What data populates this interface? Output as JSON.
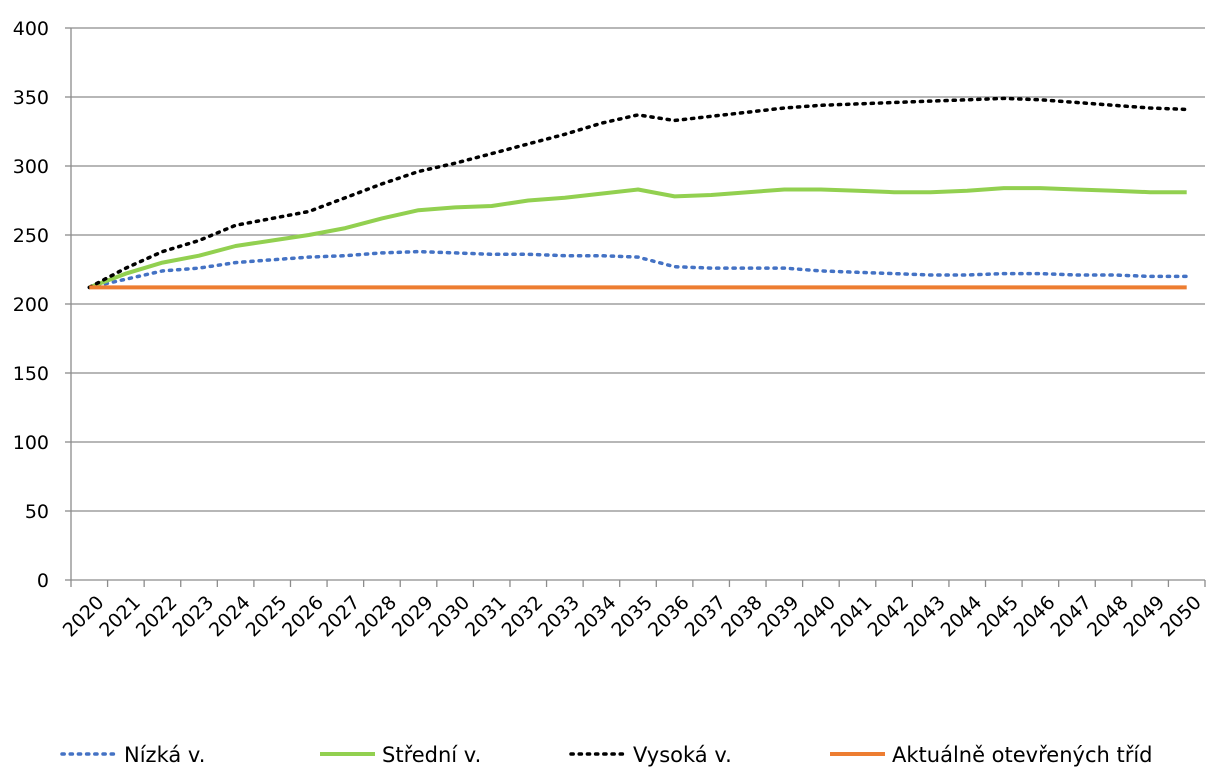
{
  "chart_data": {
    "type": "line",
    "title": "",
    "xlabel": "",
    "ylabel": "",
    "ylim": [
      0,
      400
    ],
    "yticks": [
      0,
      50,
      100,
      150,
      200,
      250,
      300,
      350,
      400
    ],
    "grid": true,
    "legend_position": "bottom",
    "x": [
      2020,
      2021,
      2022,
      2023,
      2024,
      2025,
      2026,
      2027,
      2028,
      2029,
      2030,
      2031,
      2032,
      2033,
      2034,
      2035,
      2036,
      2037,
      2038,
      2039,
      2040,
      2041,
      2042,
      2043,
      2044,
      2045,
      2046,
      2047,
      2048,
      2049,
      2050
    ],
    "series": [
      {
        "name": "Nízká v.",
        "color": "#4472c4",
        "style": "dotted",
        "values": [
          212,
          218,
          224,
          226,
          230,
          232,
          234,
          235,
          237,
          238,
          237,
          236,
          236,
          235,
          235,
          234,
          227,
          226,
          226,
          226,
          224,
          223,
          222,
          221,
          221,
          222,
          222,
          221,
          221,
          220,
          220
        ]
      },
      {
        "name": "Střední v.",
        "color": "#92d050",
        "style": "solid",
        "values": [
          212,
          222,
          230,
          235,
          242,
          246,
          250,
          255,
          262,
          268,
          270,
          271,
          275,
          277,
          280,
          283,
          278,
          279,
          281,
          283,
          283,
          282,
          281,
          281,
          282,
          284,
          284,
          283,
          282,
          281,
          281
        ]
      },
      {
        "name": "Vysoká v.",
        "color": "#000000",
        "style": "dotted",
        "values": [
          212,
          226,
          238,
          246,
          257,
          262,
          267,
          277,
          287,
          296,
          302,
          309,
          316,
          323,
          331,
          337,
          333,
          336,
          339,
          342,
          344,
          345,
          346,
          347,
          348,
          349,
          348,
          346,
          344,
          342,
          341
        ]
      },
      {
        "name": "Aktuálně otevřených tříd",
        "color": "#ed7d31",
        "style": "solid",
        "values": [
          212,
          212,
          212,
          212,
          212,
          212,
          212,
          212,
          212,
          212,
          212,
          212,
          212,
          212,
          212,
          212,
          212,
          212,
          212,
          212,
          212,
          212,
          212,
          212,
          212,
          212,
          212,
          212,
          212,
          212,
          212
        ]
      }
    ]
  }
}
